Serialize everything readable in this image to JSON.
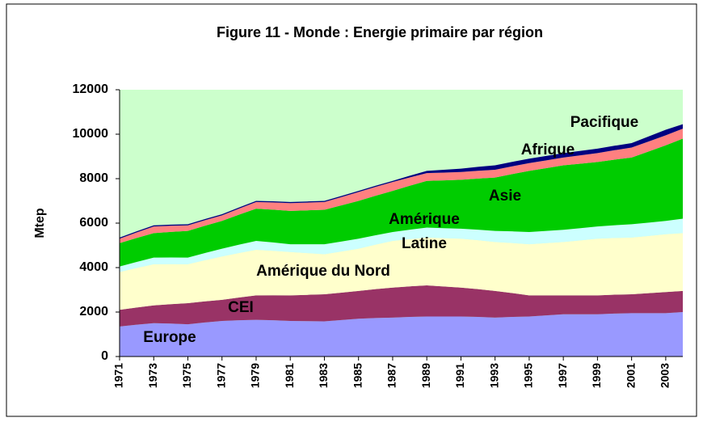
{
  "chart_data": {
    "type": "stacked-area",
    "title": "Figure 11 - Monde : Energie primaire par région",
    "y_label": "Mtep",
    "x": [
      1971,
      1972,
      1973,
      1974,
      1975,
      1976,
      1977,
      1978,
      1979,
      1980,
      1981,
      1982,
      1983,
      1984,
      1985,
      1986,
      1987,
      1988,
      1989,
      1990,
      1991,
      1992,
      1993,
      1994,
      1995,
      1996,
      1997,
      1998,
      1999,
      2000,
      2001,
      2002,
      2003,
      2004
    ],
    "xlim": [
      1971,
      2004
    ],
    "xticks": [
      1971,
      1973,
      1975,
      1977,
      1979,
      1981,
      1983,
      1985,
      1987,
      1989,
      1991,
      1993,
      1995,
      1997,
      1999,
      2001,
      2003
    ],
    "ylim": [
      0,
      12000
    ],
    "yticks": [
      0,
      2000,
      4000,
      6000,
      8000,
      10000,
      12000
    ],
    "plot_color": "#ccffcc",
    "series": [
      {
        "name": "Europe",
        "color": "#9999ff",
        "values": [
          1350,
          1430,
          1500,
          1480,
          1450,
          1530,
          1600,
          1630,
          1650,
          1630,
          1600,
          1590,
          1580,
          1640,
          1700,
          1730,
          1750,
          1780,
          1800,
          1800,
          1800,
          1780,
          1750,
          1780,
          1800,
          1850,
          1900,
          1900,
          1900,
          1930,
          1950,
          1950,
          1950,
          2000
        ]
      },
      {
        "name": "CEI",
        "color": "#993366",
        "values": [
          750,
          775,
          800,
          875,
          950,
          950,
          950,
          1025,
          1100,
          1125,
          1150,
          1185,
          1220,
          1235,
          1250,
          1300,
          1350,
          1375,
          1400,
          1350,
          1300,
          1250,
          1200,
          1075,
          950,
          900,
          850,
          850,
          850,
          850,
          850,
          900,
          950,
          950
        ]
      },
      {
        "name": "Amérique du Nord",
        "color": "#ffffcc",
        "values": [
          1700,
          1775,
          1850,
          1800,
          1750,
          1850,
          1950,
          2000,
          2050,
          2000,
          1950,
          1875,
          1800,
          1850,
          1900,
          2000,
          2100,
          2125,
          2150,
          2175,
          2200,
          2200,
          2200,
          2250,
          2300,
          2350,
          2400,
          2475,
          2550,
          2550,
          2550,
          2575,
          2600,
          2600
        ]
      },
      {
        "name": "Amérique Latine",
        "color": "#ccffff",
        "values": [
          250,
          275,
          300,
          300,
          300,
          325,
          350,
          375,
          400,
          375,
          350,
          400,
          450,
          450,
          450,
          425,
          400,
          425,
          450,
          450,
          450,
          475,
          500,
          525,
          550,
          550,
          550,
          550,
          550,
          575,
          600,
          600,
          600,
          650
        ]
      },
      {
        "name": "Asie",
        "color": "#00cc00",
        "values": [
          1050,
          1075,
          1100,
          1150,
          1200,
          1225,
          1250,
          1350,
          1450,
          1475,
          1500,
          1525,
          1550,
          1625,
          1700,
          1775,
          1850,
          1975,
          2100,
          2150,
          2200,
          2300,
          2400,
          2575,
          2750,
          2825,
          2900,
          2900,
          2900,
          2950,
          3000,
          3200,
          3400,
          3600
        ]
      },
      {
        "name": "Afrique",
        "color": "#ff8080",
        "values": [
          200,
          250,
          300,
          275,
          250,
          250,
          250,
          275,
          300,
          325,
          350,
          350,
          350,
          375,
          400,
          400,
          400,
          375,
          350,
          350,
          350,
          350,
          350,
          350,
          350,
          350,
          350,
          375,
          400,
          425,
          450,
          450,
          450,
          450
        ]
      },
      {
        "name": "Pacifique",
        "color": "#000080",
        "values": [
          50,
          50,
          50,
          50,
          50,
          50,
          50,
          50,
          50,
          50,
          50,
          50,
          50,
          50,
          50,
          50,
          50,
          75,
          100,
          125,
          150,
          175,
          200,
          200,
          200,
          200,
          200,
          200,
          200,
          200,
          200,
          225,
          250,
          200
        ]
      }
    ]
  }
}
